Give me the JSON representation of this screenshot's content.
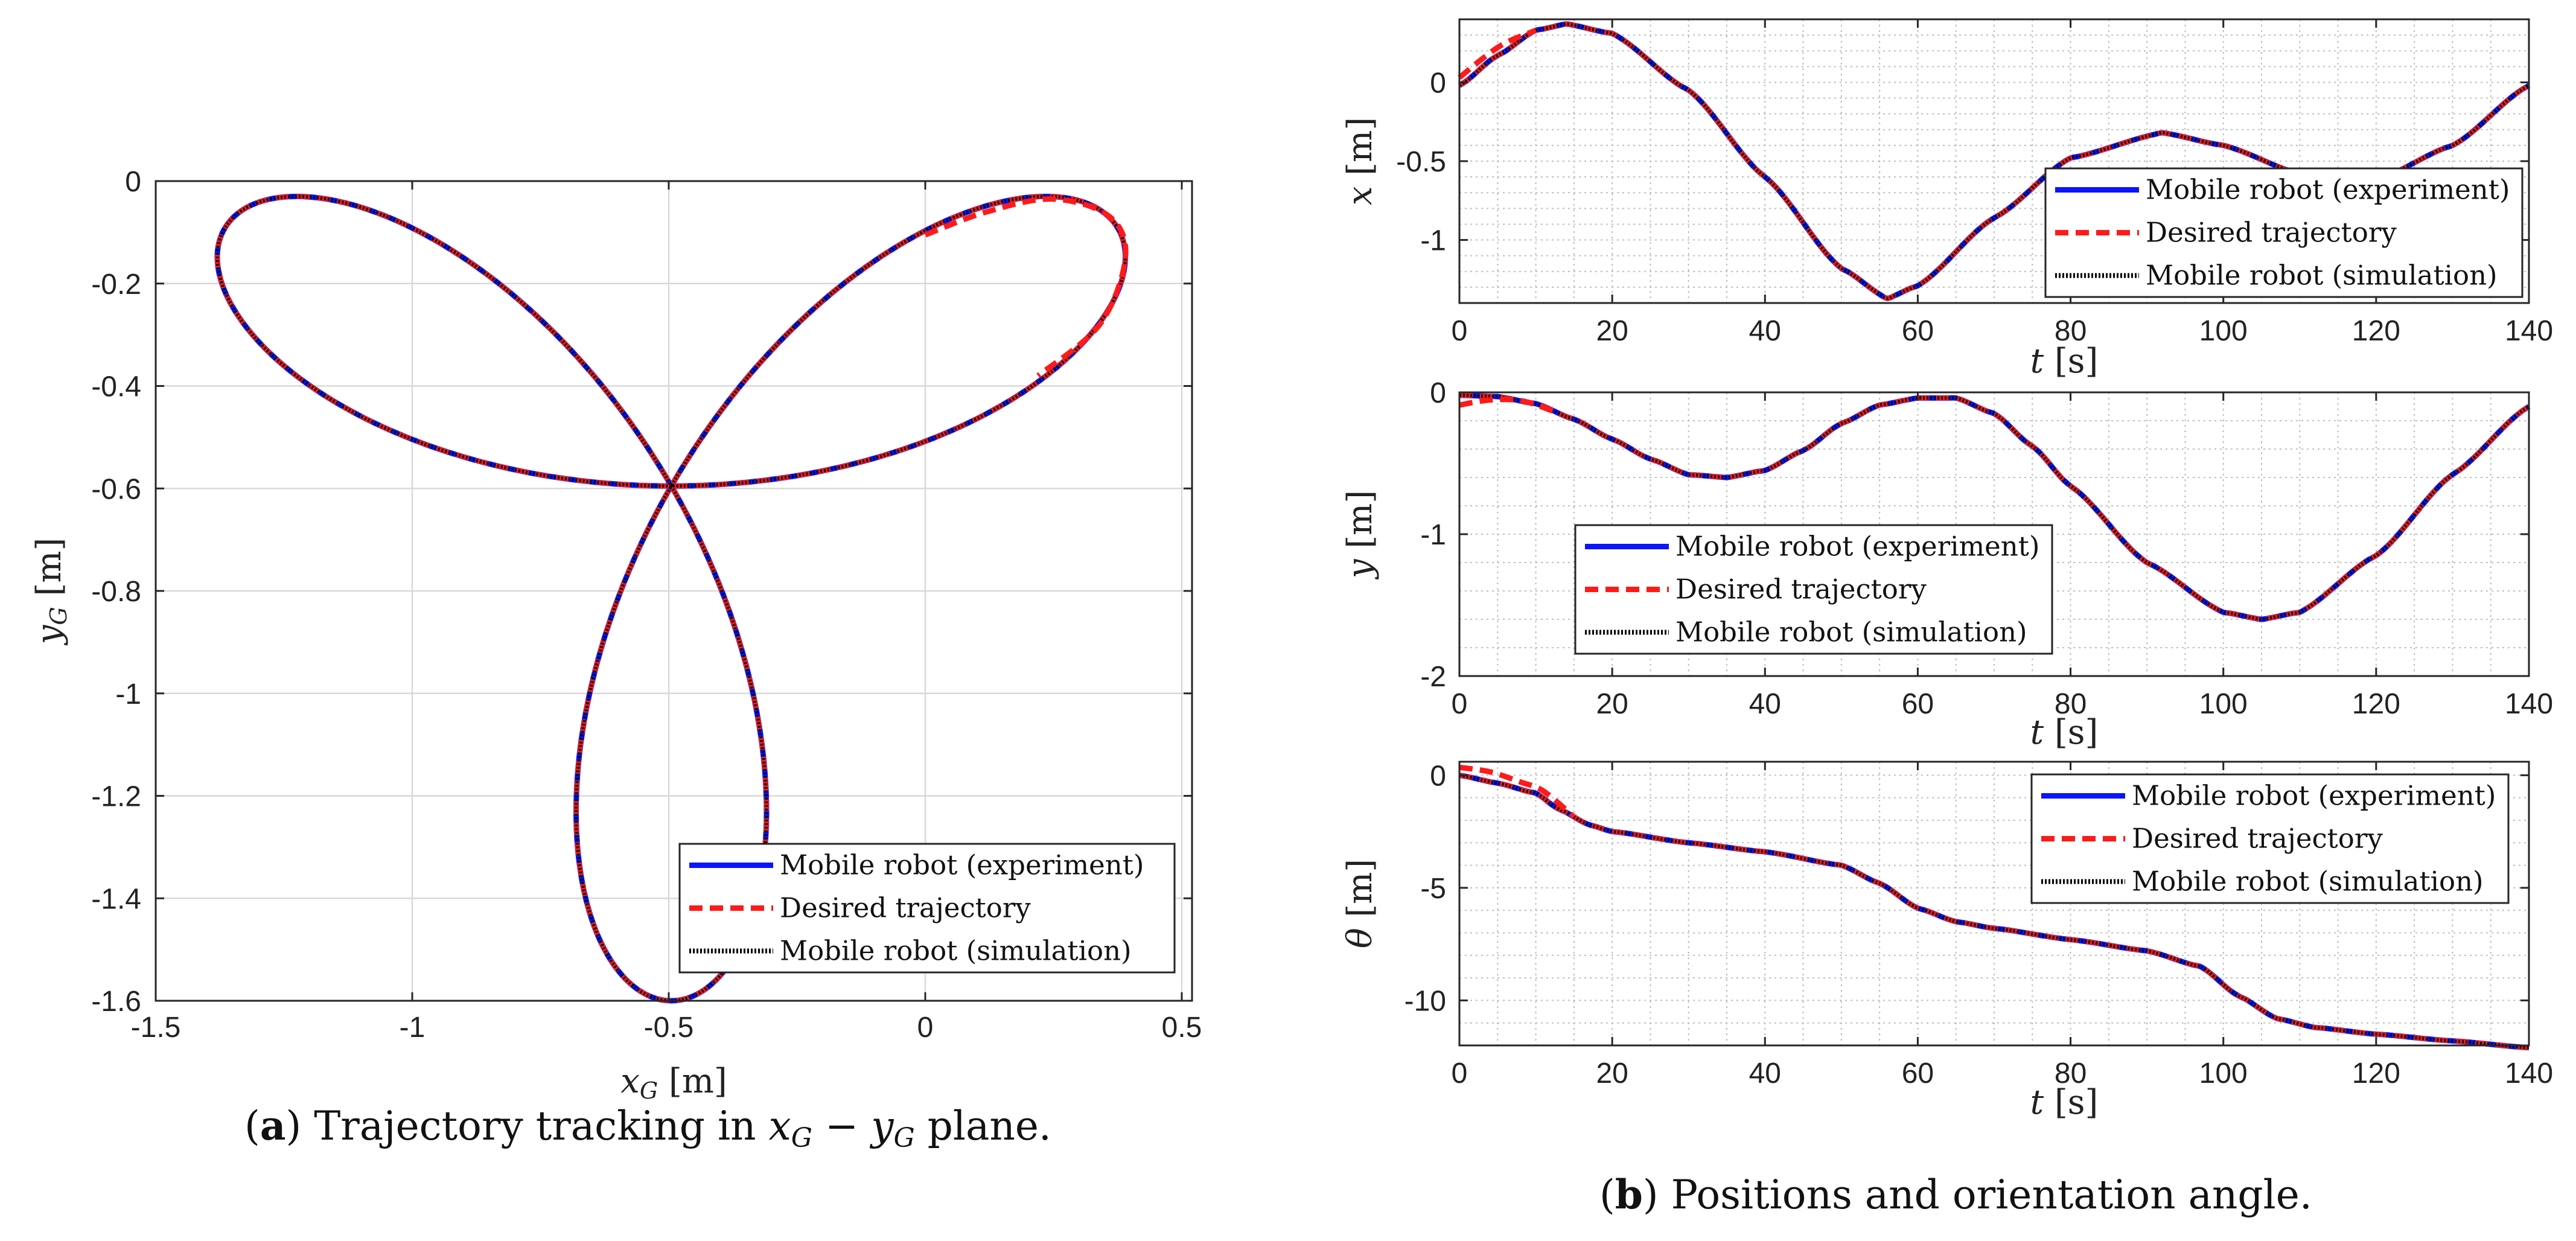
{
  "colors": {
    "experiment": "#0a14ff",
    "desired": "#ff1a1a",
    "simulation": "#000000",
    "grid": "#d9d9d9",
    "minorgrid": "#bdbdbd"
  },
  "legend_entries": [
    "Mobile robot (experiment)",
    "Desired trajectory",
    "Mobile robot (simulation)"
  ],
  "captions": {
    "a": {
      "bold": "a",
      "rest_1": ") Trajectory tracking in ",
      "math_1": "x",
      "sub_1": "G",
      "mid": " − ",
      "math_2": "y",
      "sub_2": "G",
      "rest_2": " plane."
    },
    "b": {
      "bold": "b",
      "rest": ") Positions and orientation angle."
    }
  },
  "chart_data": [
    {
      "type": "line",
      "id": "a",
      "xlabel": {
        "sym": "x",
        "sub": "G",
        "unit": " [m]"
      },
      "ylabel": {
        "sym": "y",
        "sub": "G",
        "unit": " [m]"
      },
      "xlim": [
        -1.5,
        0.52
      ],
      "ylim": [
        -1.6,
        0
      ],
      "xticks": [
        -1.5,
        -1,
        -0.5,
        0,
        0.5
      ],
      "xtick_labels": [
        "-1.5",
        "-1",
        "-0.5",
        "0",
        "0.5"
      ],
      "yticks": [
        0,
        -0.2,
        -0.4,
        -0.6,
        -0.8,
        -1,
        -1.2,
        -1.4,
        -1.6
      ],
      "ytick_labels": [
        "0",
        "-0.2",
        "-0.4",
        "-0.6",
        "-0.8",
        "-1",
        "-1.2",
        "-1.4",
        "-1.6"
      ],
      "grid": true,
      "legend_position": "bottom-right",
      "curve": {
        "description": "three-lobed rose",
        "center": [
          -0.5,
          -0.6
        ],
        "radius": 1.0,
        "lobes": 3
      },
      "series": [
        {
          "name": "Mobile robot (experiment)",
          "style": "solid"
        },
        {
          "name": "Desired trajectory",
          "style": "dashed"
        },
        {
          "name": "Mobile robot (simulation)",
          "style": "dotted"
        }
      ]
    },
    {
      "type": "line",
      "id": "b-x",
      "xlabel": {
        "sym": "t",
        "unit": " [s]"
      },
      "ylabel": {
        "sym": "x",
        "unit": " [m]"
      },
      "xlim": [
        0,
        140
      ],
      "ylim": [
        -1.4,
        0.4
      ],
      "xticks": [
        0,
        20,
        40,
        60,
        80,
        100,
        120,
        140
      ],
      "xtick_labels": [
        "0",
        "20",
        "40",
        "60",
        "80",
        "100",
        "120",
        "140"
      ],
      "yticks": [
        0,
        -0.5,
        -1
      ],
      "ytick_labels": [
        "0",
        "-0.5",
        "-1"
      ],
      "grid": "minor",
      "legend_position": "bottom-right",
      "samples": {
        "t": [
          0,
          5,
          10,
          14,
          20,
          30,
          40,
          50,
          56,
          60,
          70,
          80,
          92,
          100,
          110,
          120,
          130,
          140
        ],
        "x": [
          -0.02,
          0.17,
          0.33,
          0.37,
          0.31,
          -0.05,
          -0.6,
          -1.18,
          -1.37,
          -1.29,
          -0.86,
          -0.48,
          -0.32,
          -0.4,
          -0.58,
          -0.62,
          -0.4,
          -0.02
        ]
      },
      "desired_start": {
        "t": [
          0,
          3,
          6
        ],
        "x": [
          0.03,
          0.15,
          0.25
        ]
      },
      "series": [
        {
          "name": "Mobile robot (experiment)",
          "style": "solid"
        },
        {
          "name": "Desired trajectory",
          "style": "dashed"
        },
        {
          "name": "Mobile robot (simulation)",
          "style": "dotted"
        }
      ]
    },
    {
      "type": "line",
      "id": "b-y",
      "xlabel": {
        "sym": "t",
        "unit": " [s]"
      },
      "ylabel": {
        "sym": "y",
        "unit": " [m]"
      },
      "xlim": [
        0,
        140
      ],
      "ylim": [
        -2,
        0
      ],
      "xticks": [
        0,
        20,
        40,
        60,
        80,
        100,
        120,
        140
      ],
      "xtick_labels": [
        "0",
        "20",
        "40",
        "60",
        "80",
        "100",
        "120",
        "140"
      ],
      "yticks": [
        0,
        -1,
        -2
      ],
      "ytick_labels": [
        "0",
        "-1",
        "-2"
      ],
      "grid": "minor",
      "legend_position": "bottom-left",
      "samples": {
        "t": [
          0,
          5,
          10,
          15,
          20,
          25,
          30,
          35,
          40,
          45,
          50,
          55,
          60,
          65,
          70,
          75,
          80,
          90,
          100,
          105,
          110,
          120,
          130,
          140
        ],
        "y": [
          -0.02,
          -0.03,
          -0.08,
          -0.19,
          -0.33,
          -0.47,
          -0.58,
          -0.6,
          -0.55,
          -0.41,
          -0.22,
          -0.09,
          -0.04,
          -0.04,
          -0.15,
          -0.38,
          -0.66,
          -1.2,
          -1.55,
          -1.6,
          -1.55,
          -1.15,
          -0.58,
          -0.1
        ]
      },
      "desired_start": {
        "t": [
          0,
          3,
          6,
          9
        ],
        "y": [
          -0.09,
          -0.06,
          -0.05,
          -0.07
        ]
      },
      "series": [
        {
          "name": "Mobile robot (experiment)",
          "style": "solid"
        },
        {
          "name": "Desired trajectory",
          "style": "dashed"
        },
        {
          "name": "Mobile robot (simulation)",
          "style": "dotted"
        }
      ]
    },
    {
      "type": "line",
      "id": "b-theta",
      "xlabel": {
        "sym": "t",
        "unit": " [s]"
      },
      "ylabel": {
        "sym": "θ",
        "unit": " [m]"
      },
      "xlim": [
        0,
        140
      ],
      "ylim": [
        -12,
        0.6
      ],
      "xticks": [
        0,
        20,
        40,
        60,
        80,
        100,
        120,
        140
      ],
      "xtick_labels": [
        "0",
        "20",
        "40",
        "60",
        "80",
        "100",
        "120",
        "140"
      ],
      "yticks": [
        0,
        -5,
        -10
      ],
      "ytick_labels": [
        "0",
        "-5",
        "-10"
      ],
      "grid": "minor",
      "legend_position": "top-right",
      "samples": {
        "t": [
          0,
          5,
          10,
          13,
          17,
          20,
          30,
          40,
          50,
          55,
          60,
          65,
          70,
          80,
          90,
          97,
          102,
          107,
          112,
          120,
          130,
          140
        ],
        "theta": [
          0,
          -0.35,
          -0.8,
          -1.5,
          -2.2,
          -2.5,
          -3.0,
          -3.4,
          -4.0,
          -4.8,
          -5.9,
          -6.5,
          -6.8,
          -7.3,
          -7.8,
          -8.5,
          -9.8,
          -10.8,
          -11.2,
          -11.5,
          -11.8,
          -12.1
        ]
      },
      "desired_start": {
        "t": [
          0,
          4,
          8,
          11
        ],
        "theta": [
          0.35,
          0.15,
          -0.3,
          -0.7
        ]
      },
      "series": [
        {
          "name": "Mobile robot (experiment)",
          "style": "solid"
        },
        {
          "name": "Desired trajectory",
          "style": "dashed"
        },
        {
          "name": "Mobile robot (simulation)",
          "style": "dotted"
        }
      ]
    }
  ]
}
